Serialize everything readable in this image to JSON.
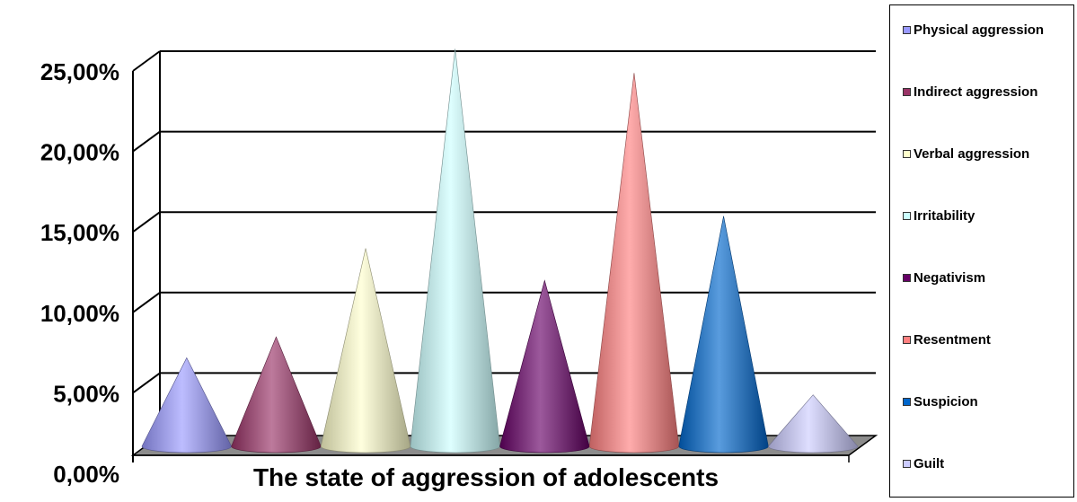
{
  "chart_data": {
    "type": "bar",
    "mark": "cone",
    "title": "",
    "xlabel": "The state of aggression of adolescents",
    "ylabel": "",
    "ylim": [
      0,
      0.25
    ],
    "yticks": [
      "0,00%",
      "5,00%",
      "10,00%",
      "15,00%",
      "20,00%",
      "25,00%"
    ],
    "grid": true,
    "legend_position": "right",
    "series": [
      {
        "name": "Physical aggression",
        "value": 0.055,
        "color": "#9999FF"
      },
      {
        "name": "Indirect aggression",
        "value": 0.068,
        "color": "#993366"
      },
      {
        "name": "Verbal aggression",
        "value": 0.123,
        "color": "#FFFFCC"
      },
      {
        "name": "Irritability",
        "value": 0.247,
        "color": "#CCFFFF"
      },
      {
        "name": "Negativism",
        "value": 0.103,
        "color": "#660066"
      },
      {
        "name": "Resentment",
        "value": 0.232,
        "color": "#FF8080"
      },
      {
        "name": "Suspicion",
        "value": 0.143,
        "color": "#0066CC"
      },
      {
        "name": "Guilt",
        "value": 0.032,
        "color": "#CCCCFF"
      }
    ]
  }
}
